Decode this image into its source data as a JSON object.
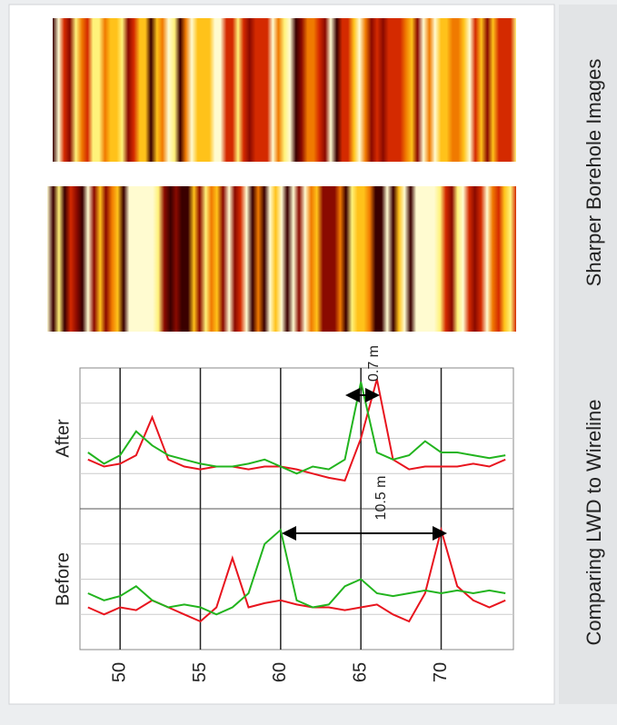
{
  "labels": {
    "left": "Comparing LWD to Wireline",
    "right": "Sharper Borehole Images"
  },
  "chart_data": [
    {
      "type": "line",
      "title": "Before",
      "annotation": "10.5 m",
      "x": [
        48,
        49,
        50,
        51,
        52,
        53,
        54,
        55,
        56,
        57,
        58,
        59,
        60,
        61,
        62,
        63,
        64,
        65,
        66,
        67,
        68,
        69,
        70,
        71,
        72,
        73,
        74
      ],
      "xlim": [
        47.5,
        74.5
      ],
      "xticks": [
        50,
        55,
        60,
        65,
        70
      ],
      "ylim": [
        0,
        1
      ],
      "grid": true,
      "series": [
        {
          "color": "#e8141e",
          "values": [
            0.3,
            0.25,
            0.3,
            0.28,
            0.35,
            0.3,
            0.25,
            0.2,
            0.3,
            0.65,
            0.3,
            0.33,
            0.35,
            0.32,
            0.3,
            0.3,
            0.28,
            0.3,
            0.32,
            0.25,
            0.2,
            0.4,
            0.85,
            0.45,
            0.35,
            0.3,
            0.35
          ]
        },
        {
          "color": "#22b41e",
          "values": [
            0.4,
            0.35,
            0.38,
            0.45,
            0.35,
            0.3,
            0.32,
            0.3,
            0.25,
            0.3,
            0.4,
            0.75,
            0.85,
            0.35,
            0.3,
            0.32,
            0.45,
            0.5,
            0.4,
            0.38,
            0.4,
            0.42,
            0.4,
            0.42,
            0.4,
            0.42,
            0.4
          ]
        }
      ]
    },
    {
      "type": "line",
      "title": "After",
      "annotation": "0.7 m",
      "x": [
        48,
        49,
        50,
        51,
        52,
        53,
        54,
        55,
        56,
        57,
        58,
        59,
        60,
        61,
        62,
        63,
        64,
        65,
        66,
        67,
        68,
        69,
        70,
        71,
        72,
        73,
        74
      ],
      "xlim": [
        47.5,
        74.5
      ],
      "ylim": [
        0,
        1
      ],
      "grid": true,
      "series": [
        {
          "color": "#e8141e",
          "values": [
            0.35,
            0.3,
            0.32,
            0.38,
            0.65,
            0.35,
            0.3,
            0.28,
            0.3,
            0.3,
            0.28,
            0.3,
            0.3,
            0.28,
            0.25,
            0.22,
            0.2,
            0.5,
            0.92,
            0.35,
            0.28,
            0.3,
            0.3,
            0.3,
            0.32,
            0.3,
            0.35
          ]
        },
        {
          "color": "#22b41e",
          "values": [
            0.4,
            0.32,
            0.38,
            0.55,
            0.45,
            0.38,
            0.35,
            0.32,
            0.3,
            0.3,
            0.32,
            0.35,
            0.3,
            0.25,
            0.3,
            0.28,
            0.35,
            0.9,
            0.4,
            0.35,
            0.38,
            0.48,
            0.4,
            0.4,
            0.38,
            0.36,
            0.38
          ]
        }
      ]
    }
  ]
}
